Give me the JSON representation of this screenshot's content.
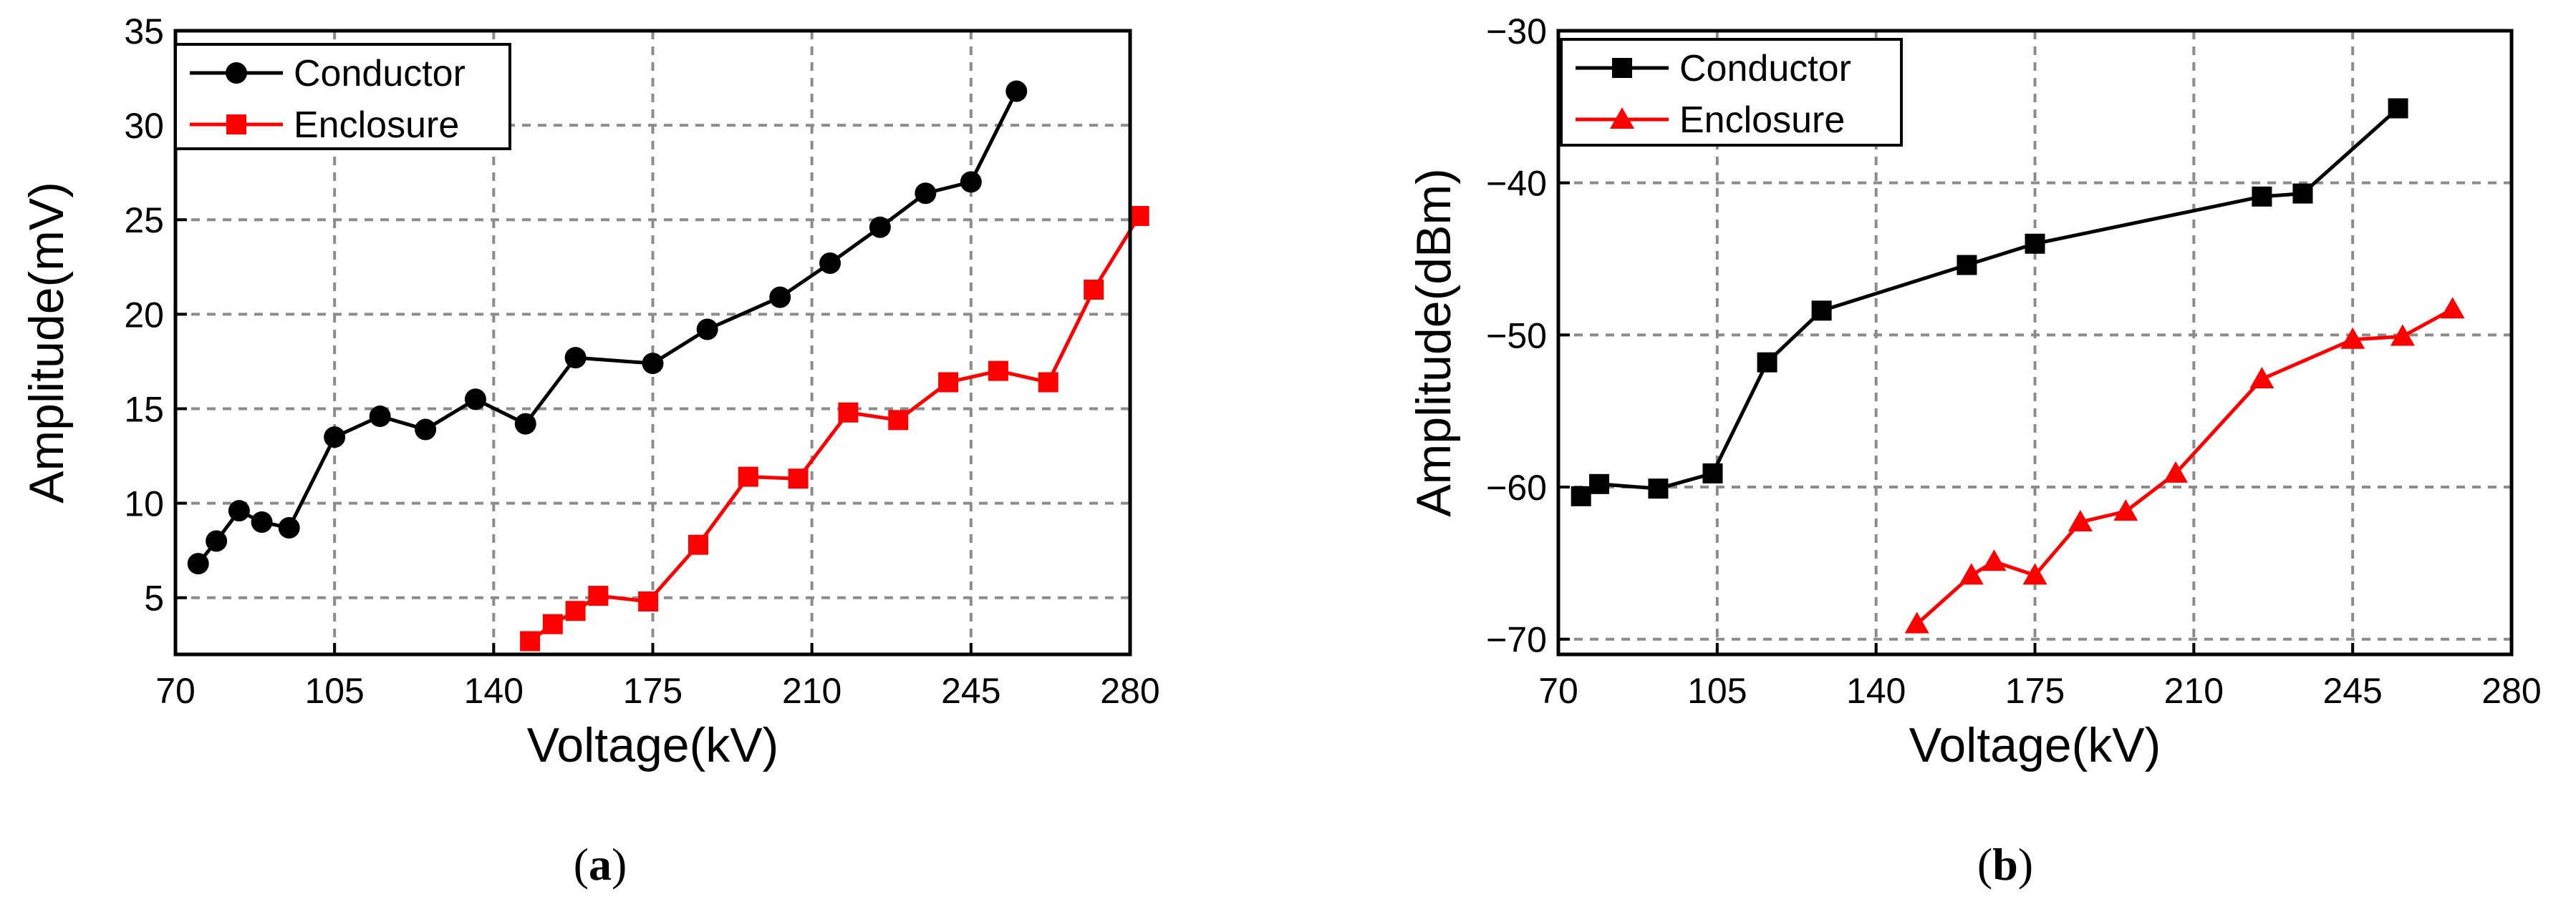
{
  "chart_data": [
    {
      "type": "line",
      "caption": "a",
      "xlabel": "Voltage(kV)",
      "ylabel": "Amplitude(mV)",
      "xlim": [
        70,
        280
      ],
      "ylim": [
        2,
        35
      ],
      "xticks": [
        70,
        105,
        140,
        175,
        210,
        245,
        280
      ],
      "yticks": [
        5,
        10,
        15,
        20,
        25,
        30,
        35
      ],
      "legend_position": "top-left",
      "series": [
        {
          "name": "Conductor",
          "color": "#000000",
          "marker": "circle",
          "x": [
            75,
            79,
            84,
            89,
            95,
            105,
            115,
            125,
            136,
            147,
            158,
            175,
            187,
            203,
            214,
            225,
            235,
            245,
            255
          ],
          "y": [
            6.8,
            8.0,
            9.6,
            9.0,
            8.7,
            13.5,
            14.6,
            13.9,
            15.5,
            14.2,
            17.7,
            17.4,
            19.2,
            20.9,
            22.7,
            24.6,
            26.4,
            27.0,
            31.8
          ]
        },
        {
          "name": "Enclosure",
          "color": "#ff0000",
          "marker": "square",
          "x": [
            148,
            153,
            158,
            163,
            174,
            185,
            196,
            207,
            218,
            229,
            240,
            251,
            262,
            272,
            282
          ],
          "y": [
            2.7,
            3.6,
            4.3,
            5.1,
            4.8,
            7.8,
            11.4,
            11.3,
            14.8,
            14.4,
            16.4,
            17.0,
            16.4,
            21.3,
            25.2
          ]
        }
      ]
    },
    {
      "type": "line",
      "caption": "b",
      "xlabel": "Voltage(kV)",
      "ylabel": "Amplitude(dBm)",
      "xlim": [
        70,
        280
      ],
      "ylim": [
        -71,
        -30
      ],
      "xticks": [
        70,
        105,
        140,
        175,
        210,
        245,
        280
      ],
      "yticks": [
        -70,
        -60,
        -50,
        -40,
        -30
      ],
      "ytick_labels": [
        "−70",
        "−60",
        "−50",
        "−40",
        "−30"
      ],
      "legend_position": "top-left",
      "series": [
        {
          "name": "Conductor",
          "color": "#000000",
          "marker": "square",
          "x": [
            75,
            79,
            92,
            104,
            116,
            128,
            160,
            175,
            225,
            234,
            255
          ],
          "y": [
            -60.6,
            -59.8,
            -60.1,
            -59.1,
            -51.8,
            -48.4,
            -45.4,
            -44.0,
            -40.9,
            -40.7,
            -35.1
          ]
        },
        {
          "name": "Enclosure",
          "color": "#ff0000",
          "marker": "triangle",
          "x": [
            149,
            161,
            166,
            175,
            185,
            195,
            206,
            225,
            245,
            256,
            267
          ],
          "y": [
            -69.0,
            -65.8,
            -64.9,
            -65.8,
            -62.3,
            -61.6,
            -59.1,
            -52.9,
            -50.3,
            -50.1,
            -48.3
          ]
        }
      ]
    }
  ]
}
